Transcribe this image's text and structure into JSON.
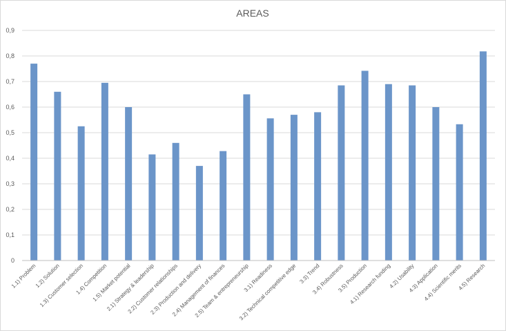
{
  "chart_data": {
    "type": "bar",
    "title": "AREAS",
    "xlabel": "",
    "ylabel": "",
    "ylim": [
      0,
      0.9
    ],
    "ytick_step": 0.1,
    "ytick_labels": [
      "0",
      "0,1",
      "0,2",
      "0,3",
      "0,4",
      "0,5",
      "0,6",
      "0,7",
      "0,8",
      "0,9"
    ],
    "grid": true,
    "legend": "none",
    "bar_color": "#6b95c9",
    "grid_color": "#d9d9d9",
    "categories": [
      "1.1) Problem",
      "1.2) Solution",
      "1.3) Customer selection",
      "1.4) Competition",
      "1.5) Market potential",
      "2.1) Strategy & leadership",
      "2.2) Customer relationships",
      "2.3) Production and delivery",
      "2.4) Management of finances",
      "2.5) Team & entrepreneurship",
      "3.1) Readiness",
      "3.2) Technical competitive edge",
      "3.3) Trend",
      "3.4) Robustness",
      "3.5) Production",
      "4.1) Research funding",
      "4.2) Usability",
      "4.3) Application",
      "4.4) Scientific merits",
      "4.5) Research"
    ],
    "values": [
      0.77,
      0.66,
      0.525,
      0.695,
      0.6,
      0.415,
      0.46,
      0.37,
      0.428,
      0.65,
      0.556,
      0.57,
      0.58,
      0.685,
      0.742,
      0.69,
      0.685,
      0.6,
      0.533,
      0.818
    ]
  }
}
